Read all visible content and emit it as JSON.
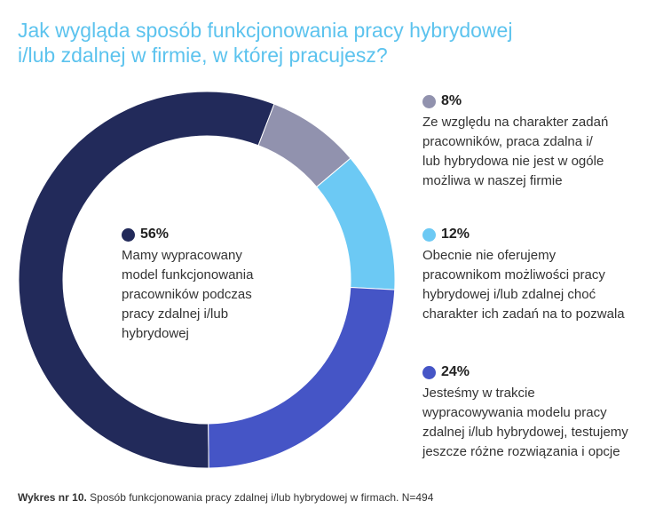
{
  "title": {
    "lines": [
      "Jak wygląda sposób funkcjonowania pracy hybrydowej",
      "i/lub zdalnej w firmie, w której pracujesz?"
    ]
  },
  "chart_data": {
    "type": "pie",
    "title": "Jak wygląda sposób funkcjonowania pracy hybrydowej i/lub zdalnej w firmie, w której pracujesz?",
    "donut": true,
    "slices": [
      {
        "value": 56,
        "label": "56%",
        "color": "#222a5a",
        "lines": [
          "Mamy wypracowany",
          "model funkcjonowania",
          "pracowników podczas",
          "pracy zdalnej i/lub",
          "hybrydowej"
        ]
      },
      {
        "value": 8,
        "label": "8%",
        "color": "#9192ae",
        "lines": [
          "Ze względu na charakter zadań",
          "pracowników, praca zdalna i/",
          "lub hybrydowa nie jest w ogóle",
          "możliwa w naszej firmie"
        ]
      },
      {
        "value": 12,
        "label": "12%",
        "color": "#6cc9f4",
        "lines": [
          "Obecnie nie oferujemy",
          "pracownikom możliwości pracy",
          "hybrydowej i/lub zdalnej choć",
          "charakter ich zadań na to pozwala"
        ]
      },
      {
        "value": 24,
        "label": "24%",
        "color": "#4555c6",
        "lines": [
          "Jesteśmy w trakcie",
          "wypracowywania modelu pracy",
          "zdalnej i/lub hybrydowej, testujemy",
          "jeszcze różne rozwiązania i opcje"
        ]
      }
    ]
  },
  "footer": {
    "label": "Wykres nr 10.",
    "text": "Sposób funkcjonowania pracy zdalnej i/lub hybrydowej w firmach. N=494"
  }
}
